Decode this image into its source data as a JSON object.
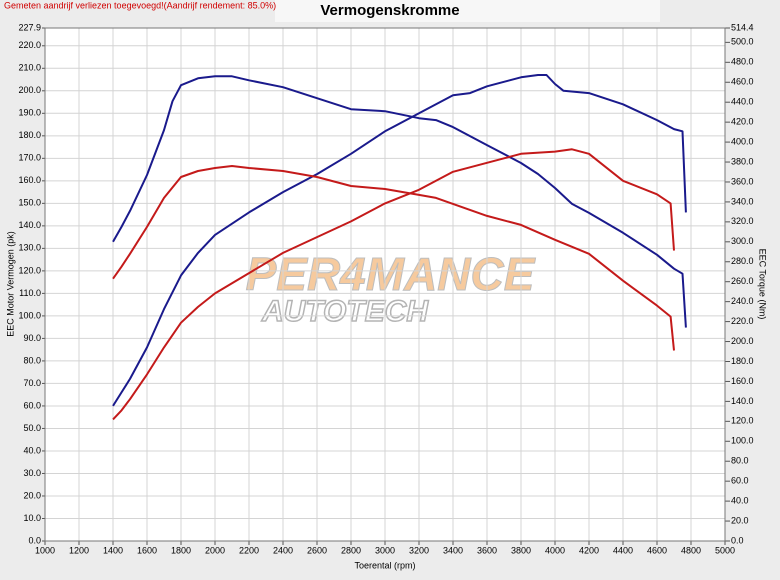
{
  "chart_data": {
    "type": "line",
    "title": "Vermogenskromme",
    "note": "Gemeten aandrijf verliezen toegevoegd!(Aandrijf rendement: 85.0%)",
    "xlabel": "Toerental (rpm)",
    "ylabel": "EEC Motor Vermogen (pk)",
    "y2label": "EEC Torque (Nm)",
    "logo": {
      "top": "PER4MANCE",
      "bottom": "AUTOTECH"
    },
    "grid": true,
    "xlim": [
      1000,
      5000
    ],
    "xticks": [
      1000,
      1200,
      1400,
      1600,
      1800,
      2000,
      2200,
      2400,
      2600,
      2800,
      3000,
      3200,
      3400,
      3600,
      3800,
      4000,
      4200,
      4400,
      4600,
      4800,
      5000
    ],
    "ylim": [
      0,
      227.9
    ],
    "yticks": [
      {
        "value": 0,
        "label": "0.0"
      },
      {
        "value": 10,
        "label": "10.0"
      },
      {
        "value": 20,
        "label": "20.0"
      },
      {
        "value": 30,
        "label": "30.0"
      },
      {
        "value": 40,
        "label": "40.0"
      },
      {
        "value": 50,
        "label": "50.0"
      },
      {
        "value": 60,
        "label": "60.0"
      },
      {
        "value": 70,
        "label": "70.0"
      },
      {
        "value": 80,
        "label": "80.0"
      },
      {
        "value": 90,
        "label": "90.0"
      },
      {
        "value": 100,
        "label": "100.0"
      },
      {
        "value": 110,
        "label": "110.0"
      },
      {
        "value": 120,
        "label": "120.0"
      },
      {
        "value": 130,
        "label": "130.0"
      },
      {
        "value": 140,
        "label": "140.0"
      },
      {
        "value": 150,
        "label": "150.0"
      },
      {
        "value": 160,
        "label": "160.0"
      },
      {
        "value": 170,
        "label": "170.0"
      },
      {
        "value": 180,
        "label": "180.0"
      },
      {
        "value": 190,
        "label": "190.0"
      },
      {
        "value": 200,
        "label": "200.0"
      },
      {
        "value": 210,
        "label": "210.0"
      },
      {
        "value": 220,
        "label": "220.0"
      },
      227.9
    ],
    "y2lim": [
      0,
      514.4
    ],
    "y2ticks": [
      {
        "value": 0,
        "label": "0.0"
      },
      {
        "value": 20,
        "label": "20.0"
      },
      {
        "value": 40,
        "label": "40.0"
      },
      {
        "value": 60,
        "label": "60.0"
      },
      {
        "value": 80,
        "label": "80.0"
      },
      {
        "value": 100,
        "label": "100.0"
      },
      {
        "value": 120,
        "label": "120.0"
      },
      {
        "value": 140,
        "label": "140.0"
      },
      {
        "value": 160,
        "label": "160.0"
      },
      {
        "value": 180,
        "label": "180.0"
      },
      {
        "value": 200,
        "label": "200.0"
      },
      {
        "value": 220,
        "label": "220.0"
      },
      {
        "value": 240,
        "label": "240.0"
      },
      {
        "value": 260,
        "label": "260.0"
      },
      {
        "value": 280,
        "label": "280.0"
      },
      {
        "value": 300,
        "label": "300.0"
      },
      {
        "value": 320,
        "label": "320.0"
      },
      {
        "value": 340,
        "label": "340.0"
      },
      {
        "value": 360,
        "label": "360.0"
      },
      {
        "value": 380,
        "label": "380.0"
      },
      {
        "value": 400,
        "label": "400.0"
      },
      {
        "value": 420,
        "label": "420.0"
      },
      {
        "value": 440,
        "label": "440.0"
      },
      {
        "value": 460,
        "label": "460.0"
      },
      {
        "value": 480,
        "label": "480.0"
      },
      {
        "value": 500,
        "label": "500.0"
      },
      514.4
    ],
    "series": [
      {
        "color": "#1a1a8c",
        "axis": "y",
        "x": [
          1400,
          1450,
          1500,
          1600,
          1700,
          1800,
          1900,
          2000,
          2200,
          2400,
          2600,
          2800,
          2900,
          3000,
          3200,
          3400,
          3500,
          3600,
          3700,
          3800,
          3900,
          3950,
          4000,
          4050,
          4200,
          4400,
          4600,
          4700,
          4750,
          4770
        ],
        "values": [
          60,
          66,
          72,
          86,
          103,
          118,
          128,
          136,
          146,
          155,
          163,
          172,
          177,
          182,
          190,
          198,
          199,
          202,
          204,
          206,
          207,
          207,
          203,
          200,
          199,
          194,
          187,
          183,
          182,
          146
        ]
      },
      {
        "color": "#1a1a8c",
        "axis": "y2",
        "x": [
          1400,
          1450,
          1500,
          1600,
          1700,
          1750,
          1800,
          1900,
          2000,
          2100,
          2200,
          2400,
          2600,
          2800,
          3000,
          3200,
          3300,
          3400,
          3600,
          3800,
          3900,
          4000,
          4100,
          4200,
          4400,
          4600,
          4700,
          4750,
          4770
        ],
        "values": [
          300,
          315,
          331,
          367,
          412,
          441,
          457,
          464,
          466,
          466,
          462,
          455,
          444,
          433,
          431,
          424,
          422,
          415,
          397,
          379,
          368,
          354,
          338,
          329,
          309,
          287,
          273,
          268,
          214
        ]
      },
      {
        "color": "#c41a1a",
        "axis": "y",
        "x": [
          1400,
          1450,
          1500,
          1600,
          1700,
          1800,
          1900,
          2000,
          2200,
          2400,
          2600,
          2800,
          3000,
          3200,
          3400,
          3600,
          3800,
          4000,
          4100,
          4200,
          4400,
          4600,
          4680,
          4700
        ],
        "values": [
          54,
          58,
          63,
          74,
          86,
          97,
          104,
          110,
          119,
          128,
          135,
          142,
          150,
          156,
          164,
          168,
          172,
          173,
          174,
          172,
          160,
          154,
          150,
          129
        ]
      },
      {
        "color": "#c41a1a",
        "axis": "y2",
        "x": [
          1400,
          1450,
          1500,
          1600,
          1700,
          1800,
          1900,
          2000,
          2100,
          2200,
          2400,
          2600,
          2800,
          3000,
          3200,
          3300,
          3400,
          3600,
          3800,
          4000,
          4200,
          4400,
          4600,
          4680,
          4700
        ],
        "values": [
          263,
          275,
          288,
          315,
          344,
          365,
          371,
          374,
          376,
          374,
          371,
          365,
          356,
          353,
          347,
          344,
          338,
          326,
          317,
          302,
          288,
          261,
          236,
          225,
          191
        ]
      }
    ]
  }
}
